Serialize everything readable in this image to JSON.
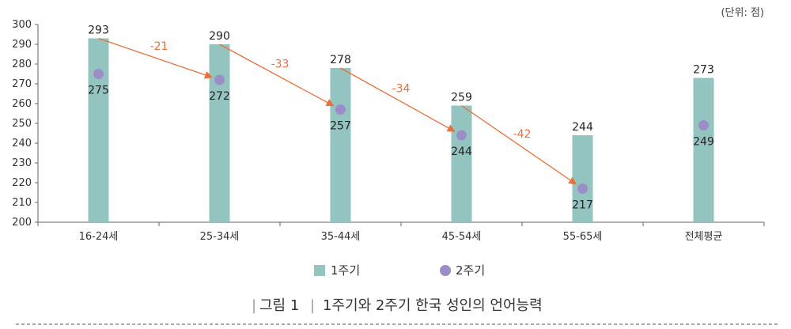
{
  "unit_label": "(단위: 점)",
  "caption": {
    "number": "그림 1",
    "title": "1주기와 2주기 한국 성인의 언어능력"
  },
  "colors": {
    "bar": "#94c4bf",
    "dot": "#9b8ec8",
    "arrow": "#e8703a",
    "axis": "#666666"
  },
  "chart_data": {
    "type": "bar",
    "categories": [
      "16-24세",
      "25-34세",
      "35-44세",
      "45-54세",
      "55-65세",
      "전체평균"
    ],
    "ylim": [
      200,
      300
    ],
    "yticks": [
      200,
      210,
      220,
      230,
      240,
      250,
      260,
      270,
      280,
      290,
      300
    ],
    "legend_position": "bottom-center",
    "series": [
      {
        "name": "1주기",
        "marker": "bar",
        "values": [
          293,
          290,
          278,
          259,
          244,
          273
        ]
      },
      {
        "name": "2주기",
        "marker": "dot",
        "values": [
          275,
          272,
          257,
          244,
          217,
          249
        ]
      }
    ],
    "annotations": [
      {
        "from_category": "16-24세",
        "to_category": "25-34세",
        "label": "-21"
      },
      {
        "from_category": "25-34세",
        "to_category": "35-44세",
        "label": "-33"
      },
      {
        "from_category": "35-44세",
        "to_category": "45-54세",
        "label": "-34"
      },
      {
        "from_category": "45-54세",
        "to_category": "55-65세",
        "label": "-42"
      }
    ]
  }
}
